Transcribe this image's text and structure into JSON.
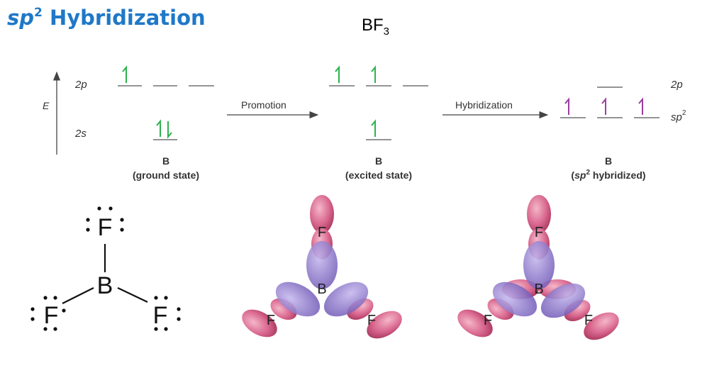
{
  "title": {
    "prefix": "sp",
    "sup": "2",
    "rest": "Hybridization"
  },
  "formula": {
    "base": "BF",
    "sub": "3"
  },
  "energy_diagram": {
    "axis_label": "E",
    "level_2p": "2p",
    "level_2s": "2s",
    "level_sp2": "sp",
    "level_sp2_sup": "2",
    "promotion_label": "Promotion",
    "hybridization_label": "Hybridization",
    "states": [
      {
        "atom": "B",
        "caption": "(ground state)"
      },
      {
        "atom": "B",
        "caption": "(excited state)"
      },
      {
        "atom": "B",
        "caption_prefix": "(",
        "caption_italic": "sp",
        "caption_sup": "2",
        "caption_rest": " hybridized)"
      }
    ],
    "colors": {
      "electron": "#2bb24c",
      "hybrid_electron": "#9b3fa0",
      "line": "#555555",
      "text": "#333333"
    }
  },
  "lewis": {
    "central": "B",
    "ligand": "F"
  },
  "orbital_models": [
    {
      "central": "B",
      "ligands": [
        "F",
        "F",
        "F"
      ]
    },
    {
      "central": "B",
      "ligands": [
        "F",
        "F",
        "F"
      ]
    }
  ],
  "colors": {
    "title": "#1f78c8",
    "p_lobe": "#d65c86",
    "hybrid_lobe": "#8a73c7"
  }
}
